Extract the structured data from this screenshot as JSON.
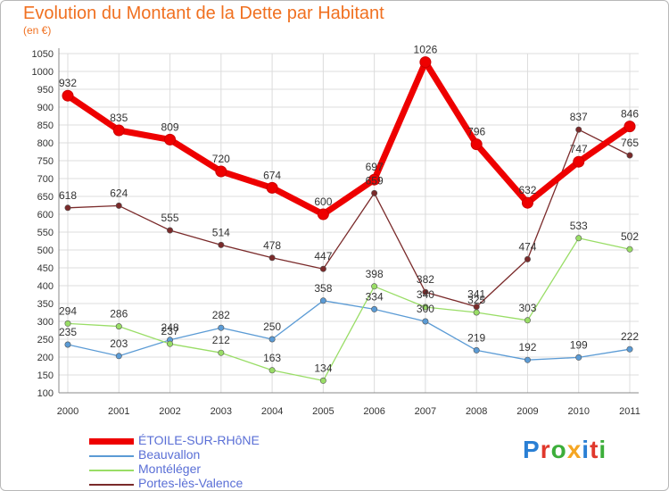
{
  "title": "Evolution du Montant de la Dette par Habitant",
  "subtitle": "(en €)",
  "logo": {
    "text": "Proxiti",
    "letter_colors": [
      "#2a7fd4",
      "#e0382c",
      "#3cae3a",
      "#f5a623",
      "#2a7fd4",
      "#e0382c",
      "#3cae3a"
    ]
  },
  "chart_data": {
    "type": "line",
    "x": [
      "2000",
      "2001",
      "2002",
      "2003",
      "2004",
      "2005",
      "2006",
      "2007",
      "2008",
      "2009",
      "2010",
      "2011"
    ],
    "ylim": [
      100,
      1050
    ],
    "yticks": [
      100,
      150,
      200,
      250,
      300,
      350,
      400,
      450,
      500,
      550,
      600,
      650,
      700,
      750,
      800,
      850,
      900,
      950,
      1000,
      1050
    ],
    "grid": true,
    "legend_position": "bottom-left",
    "series": [
      {
        "name": "ÉTOILE-SUR-RHôNE",
        "color": "#ee0000",
        "values": [
          932,
          835,
          809,
          720,
          674,
          600,
          697,
          1026,
          796,
          632,
          747,
          846
        ]
      },
      {
        "name": "Beauvallon",
        "color": "#5b9bd5",
        "values": [
          235,
          203,
          248,
          282,
          250,
          358,
          334,
          300,
          219,
          192,
          199,
          222
        ]
      },
      {
        "name": "Montéléger",
        "color": "#99dd66",
        "values": [
          294,
          286,
          237,
          212,
          163,
          134,
          398,
          340,
          325,
          303,
          533,
          502
        ]
      },
      {
        "name": "Portes-lès-Valence",
        "color": "#7a2a2a",
        "values": [
          618,
          624,
          555,
          514,
          478,
          447,
          659,
          382,
          341,
          474,
          837,
          765
        ]
      }
    ]
  }
}
